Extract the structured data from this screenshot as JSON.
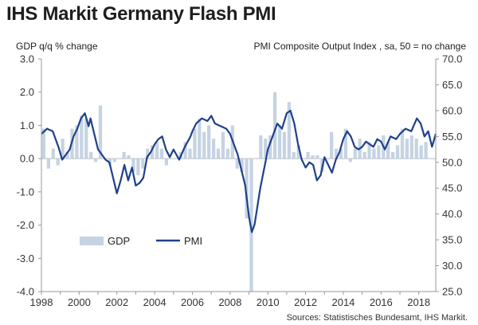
{
  "title": "IHS Markit Germany Flash PMI",
  "chart_data": {
    "type": "bar+line",
    "title": "IHS Markit Germany Flash PMI",
    "left_axis_label": "GDP q/q % change",
    "right_axis_label": "PMI Composite Output Index , sa, 50 = no change",
    "source": "Sources: Statistisches Bundesamt, IHS Markit.",
    "left_ylim": [
      -4.0,
      3.0
    ],
    "right_ylim": [
      25.0,
      70.0
    ],
    "left_ticks": [
      "3.0",
      "2.0",
      "1.0",
      "0.0",
      "-1.0",
      "-2.0",
      "-3.0",
      "-4.0"
    ],
    "right_ticks": [
      "70.0",
      "65.0",
      "60.0",
      "55.0",
      "50.0",
      "45.0",
      "40.0",
      "35.0",
      "30.0",
      "25.0"
    ],
    "x_range": [
      1998.0,
      2018.9
    ],
    "x_ticks": [
      "1998",
      "2000",
      "2002",
      "2004",
      "2006",
      "2008",
      "2010",
      "2012",
      "2014",
      "2016",
      "2018"
    ],
    "legend": [
      "GDP",
      "PMI"
    ],
    "colors": {
      "gdp": "#c5d3e2",
      "pmi": "#1f3f8a",
      "axis": "#999999"
    },
    "series": [
      {
        "name": "GDP",
        "kind": "bar",
        "quarter_starts": [
          1998.0,
          1998.25,
          1998.5,
          1998.75,
          1999.0,
          1999.25,
          1999.5,
          1999.75,
          2000.0,
          2000.25,
          2000.5,
          2000.75,
          2001.0,
          2001.25,
          2001.5,
          2001.75,
          2002.0,
          2002.25,
          2002.5,
          2002.75,
          2003.0,
          2003.25,
          2003.5,
          2003.75,
          2004.0,
          2004.25,
          2004.5,
          2004.75,
          2005.0,
          2005.25,
          2005.5,
          2005.75,
          2006.0,
          2006.25,
          2006.5,
          2006.75,
          2007.0,
          2007.25,
          2007.5,
          2007.75,
          2008.0,
          2008.25,
          2008.5,
          2008.75,
          2009.0,
          2009.25,
          2009.5,
          2009.75,
          2010.0,
          2010.25,
          2010.5,
          2010.75,
          2011.0,
          2011.25,
          2011.5,
          2011.75,
          2012.0,
          2012.25,
          2012.5,
          2012.75,
          2013.0,
          2013.25,
          2013.5,
          2013.75,
          2014.0,
          2014.25,
          2014.5,
          2014.75,
          2015.0,
          2015.25,
          2015.5,
          2015.75,
          2016.0,
          2016.25,
          2016.5,
          2016.75,
          2017.0,
          2017.25,
          2017.5,
          2017.75,
          2018.0,
          2018.25,
          2018.5
        ],
        "values": [
          0.9,
          -0.3,
          0.3,
          -0.2,
          0.6,
          0.2,
          0.9,
          1.0,
          1.3,
          1.2,
          0.2,
          -0.1,
          1.6,
          0.0,
          -0.2,
          -0.1,
          0.0,
          0.2,
          0.1,
          -0.4,
          -0.5,
          -0.3,
          0.3,
          0.4,
          0.5,
          0.3,
          -0.2,
          0.0,
          0.0,
          0.2,
          0.5,
          0.3,
          0.9,
          1.2,
          0.8,
          1.0,
          0.6,
          0.3,
          0.8,
          0.3,
          1.0,
          -0.3,
          -0.4,
          -1.8,
          -4.0,
          0.0,
          0.7,
          0.6,
          0.7,
          2.0,
          1.0,
          0.8,
          1.7,
          0.2,
          0.4,
          0.0,
          0.2,
          0.1,
          0.1,
          -0.4,
          0.0,
          0.8,
          0.3,
          0.3,
          0.9,
          -0.1,
          0.3,
          0.6,
          0.2,
          0.5,
          0.3,
          0.4,
          0.7,
          0.5,
          0.2,
          0.4,
          0.9,
          0.6,
          0.7,
          0.6,
          0.4,
          0.5,
          0.0
        ]
      },
      {
        "name": "PMI",
        "kind": "line",
        "x": [
          1998.0,
          1998.3,
          1998.6,
          1998.9,
          1999.1,
          1999.3,
          1999.5,
          1999.7,
          1999.9,
          2000.1,
          2000.3,
          2000.5,
          2000.6,
          2000.8,
          2001.0,
          2001.2,
          2001.4,
          2001.6,
          2001.8,
          2002.0,
          2002.2,
          2002.4,
          2002.6,
          2002.8,
          2003.0,
          2003.2,
          2003.4,
          2003.6,
          2003.8,
          2004.0,
          2004.2,
          2004.4,
          2004.6,
          2004.8,
          2005.0,
          2005.3,
          2005.6,
          2005.9,
          2006.0,
          2006.2,
          2006.5,
          2006.8,
          2007.0,
          2007.2,
          2007.5,
          2007.8,
          2008.0,
          2008.2,
          2008.4,
          2008.6,
          2008.8,
          2009.0,
          2009.15,
          2009.3,
          2009.6,
          2009.9,
          2010.0,
          2010.3,
          2010.5,
          2010.75,
          2011.0,
          2011.2,
          2011.4,
          2011.6,
          2011.8,
          2012.0,
          2012.2,
          2012.4,
          2012.6,
          2012.8,
          2013.0,
          2013.2,
          2013.4,
          2013.6,
          2013.8,
          2014.0,
          2014.2,
          2014.4,
          2014.6,
          2014.8,
          2015.0,
          2015.2,
          2015.4,
          2015.6,
          2015.8,
          2016.0,
          2016.2,
          2016.5,
          2016.8,
          2017.0,
          2017.3,
          2017.6,
          2017.9,
          2018.1,
          2018.3,
          2018.5,
          2018.7,
          2018.9
        ],
        "values": [
          55.5,
          56.5,
          56.0,
          53.0,
          50.5,
          51.5,
          52.5,
          55.0,
          56.5,
          58.5,
          59.5,
          57.0,
          58.5,
          55.5,
          52.5,
          51.5,
          50.5,
          50.0,
          47.0,
          44.0,
          46.5,
          49.5,
          46.5,
          49.0,
          45.5,
          46.0,
          47.0,
          51.0,
          52.0,
          53.5,
          54.5,
          55.0,
          52.5,
          51.0,
          52.5,
          50.5,
          53.0,
          55.0,
          56.0,
          57.5,
          58.5,
          58.0,
          59.0,
          57.5,
          57.0,
          56.5,
          55.5,
          53.5,
          51.5,
          48.5,
          45.5,
          39.5,
          36.5,
          38.0,
          45.0,
          50.5,
          52.5,
          55.5,
          57.5,
          56.5,
          59.5,
          60.0,
          57.5,
          53.5,
          50.5,
          49.0,
          50.0,
          49.5,
          46.5,
          47.5,
          51.0,
          49.5,
          48.0,
          50.5,
          52.0,
          54.5,
          56.0,
          55.0,
          53.0,
          52.5,
          53.0,
          54.0,
          53.5,
          53.0,
          54.5,
          54.0,
          52.5,
          55.0,
          54.5,
          55.5,
          56.5,
          56.0,
          58.5,
          57.5,
          55.0,
          56.0,
          53.0,
          55.5
        ]
      }
    ]
  }
}
